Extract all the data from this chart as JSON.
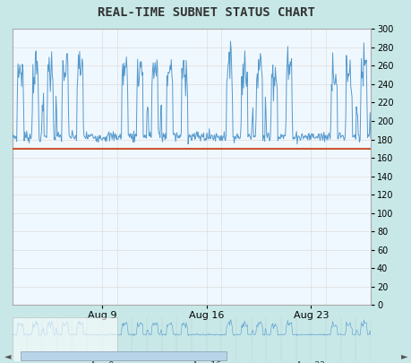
{
  "title": "REAL-TIME SUBNET STATUS CHART",
  "title_fontsize": 10,
  "title_color": "#333333",
  "title_bg_color": "#b0d8d8",
  "line_color": "#5599cc",
  "hline_color": "#cc5533",
  "hline_y": 170,
  "ylim": [
    0,
    300
  ],
  "ytick_interval": 20,
  "x_labels": [
    "Aug 9",
    "Aug 16",
    "Aug 23"
  ],
  "bg_color": "#ffffff",
  "outer_bg": "#c8e8e8",
  "plot_area_bg": "#f0f8ff",
  "axis_line_color": "#aaaaaa",
  "grid_color": "#dddddd"
}
